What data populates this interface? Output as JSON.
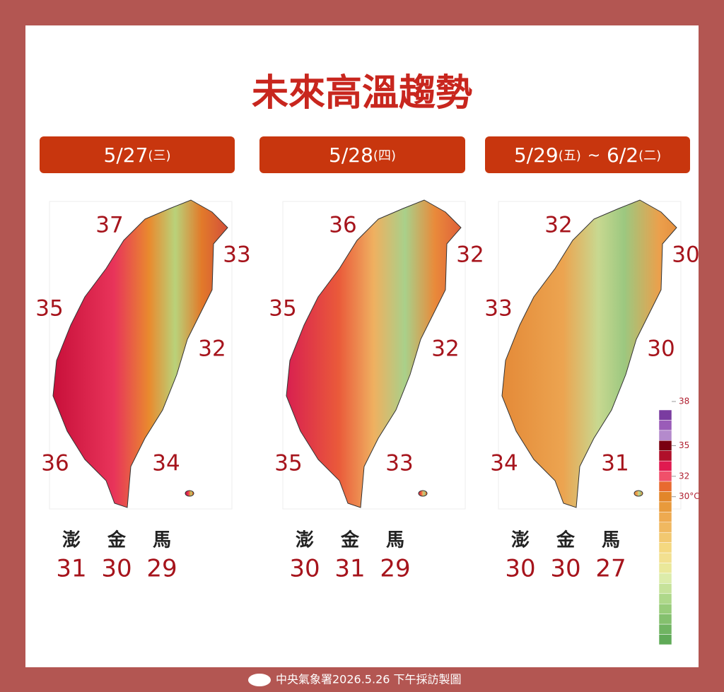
{
  "title": "未來高溫趨勢",
  "panels": [
    {
      "date": "5/27",
      "weekday": "(三)",
      "map_labels": [
        37,
        33,
        35,
        32,
        36,
        34
      ],
      "islands": {
        "names": [
          "澎",
          "金",
          "馬"
        ],
        "values": [
          31,
          30,
          29
        ]
      }
    },
    {
      "date": "5/28",
      "weekday": "(四)",
      "map_labels": [
        36,
        32,
        35,
        32,
        35,
        33
      ],
      "islands": {
        "names": [
          "澎",
          "金",
          "馬"
        ],
        "values": [
          30,
          31,
          29
        ]
      }
    },
    {
      "date": "5/29",
      "weekday": "(五)",
      "range_sep": "~",
      "end_date": "6/2",
      "end_weekday": "(二)",
      "map_labels": [
        32,
        30,
        33,
        30,
        34,
        31
      ],
      "islands": {
        "names": [
          "澎",
          "金",
          "馬"
        ],
        "values": [
          30,
          30,
          27
        ]
      }
    }
  ],
  "legend": {
    "ticks": [
      38,
      35,
      32,
      {
        "value": 30,
        "label": "30°C"
      }
    ]
  },
  "footer": "中央氣象署2026.5.26 下午採訪製圖"
}
